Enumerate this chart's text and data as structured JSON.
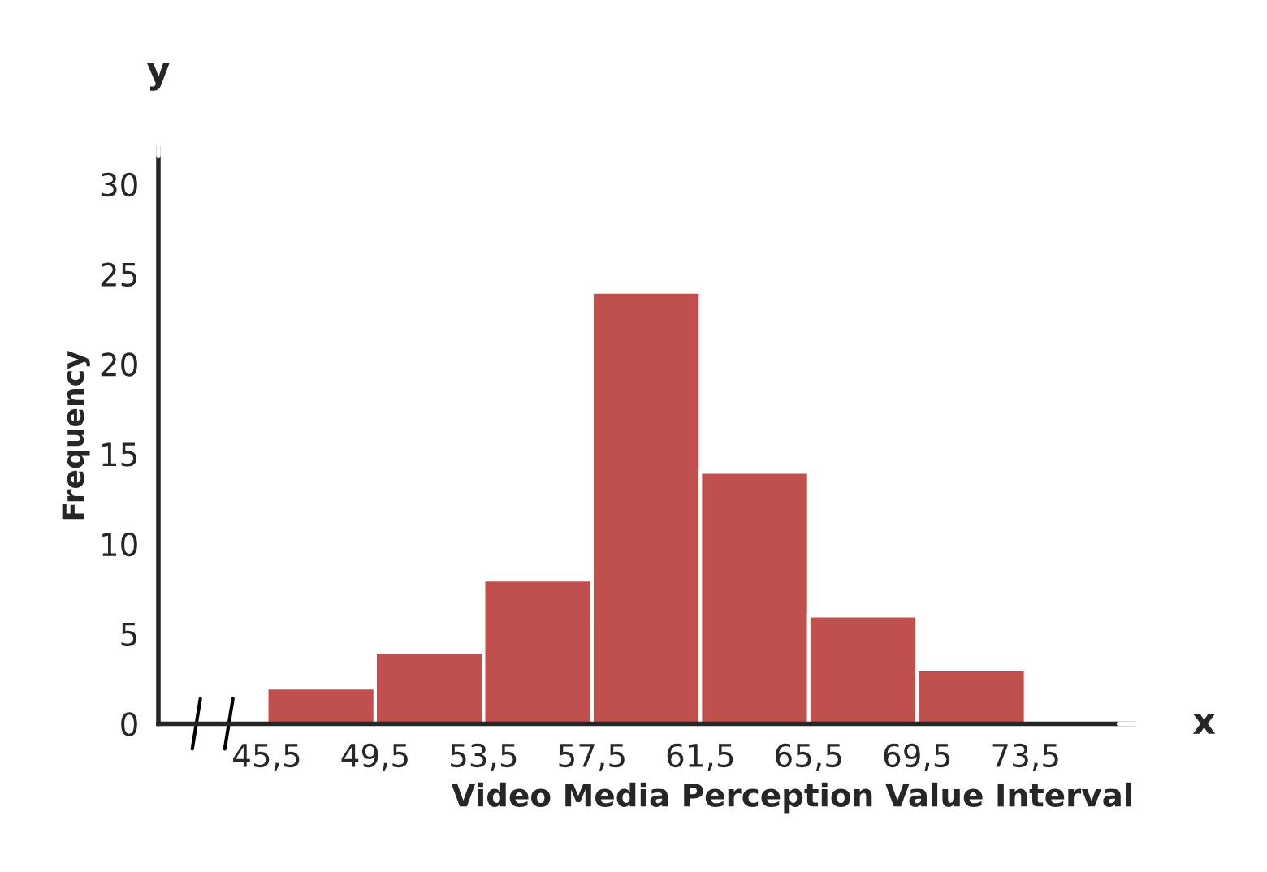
{
  "chart_data": {
    "type": "histogram",
    "xlabel": "Video Media Perception Value Interval",
    "ylabel": "Frequency",
    "bins": [
      45.5,
      49.5,
      53.5,
      57.5,
      61.5,
      65.5,
      69.5,
      73.5
    ],
    "values": [
      2,
      4,
      8,
      24,
      14,
      6,
      3
    ],
    "color": "#c0504d",
    "xlim": [
      41.5,
      77.5
    ],
    "ylim": [
      0,
      32
    ],
    "xticks": [
      {
        "value": 41.5,
        "label": null
      },
      {
        "value": 45.5,
        "label": "45,5"
      },
      {
        "value": 49.5,
        "label": "49,5"
      },
      {
        "value": 53.5,
        "label": "53,5"
      },
      {
        "value": 57.5,
        "label": "57,5"
      },
      {
        "value": 61.5,
        "label": "61,5"
      },
      {
        "value": 65.5,
        "label": "65,5"
      },
      {
        "value": 69.5,
        "label": "69,5"
      },
      {
        "value": 73.5,
        "label": "73,5"
      }
    ],
    "yticks": [
      0,
      5,
      10,
      15,
      20,
      25,
      30
    ],
    "annotations": [
      "y",
      "x"
    ],
    "grid": false,
    "legend": false
  }
}
